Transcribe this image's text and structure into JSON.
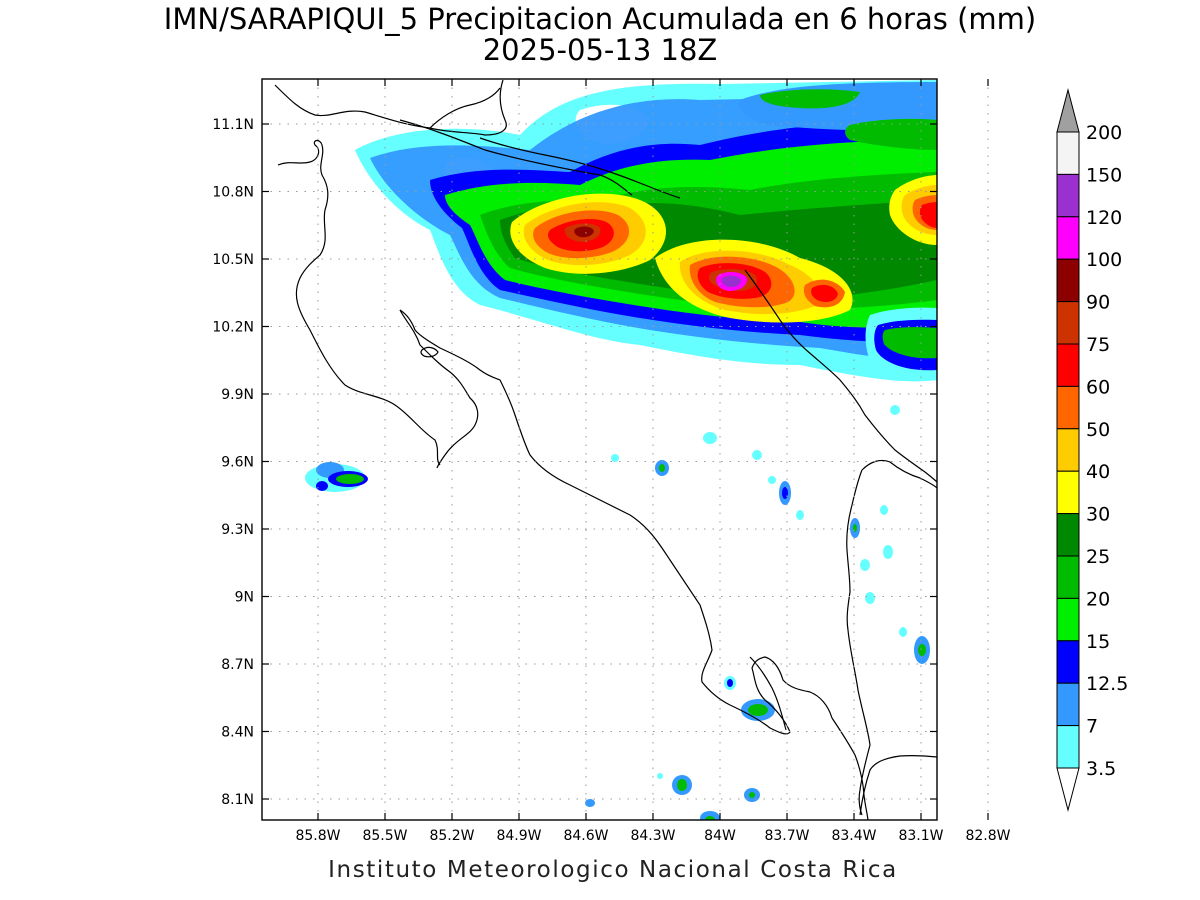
{
  "title": {
    "line1": "IMN/SARAPIQUI_5 Precipitacion Acumulada en 6 horas (mm)",
    "line2": "2025-05-13 18Z"
  },
  "credit": "Instituto Meteorologico Nacional Costa Rica",
  "map": {
    "lon_range": [
      -86.25,
      -82.54
    ],
    "lat_range": [
      8.02,
      11.28
    ],
    "grid": "dotted",
    "x_ticks": [
      "85.8W",
      "85.5W",
      "85.2W",
      "84.9W",
      "84.6W",
      "84.3W",
      "84W",
      "83.7W",
      "83.4W",
      "83.1W",
      "82.8W"
    ],
    "y_ticks": [
      "11.1N",
      "10.8N",
      "10.5N",
      "10.2N",
      "9.9N",
      "9.6N",
      "9.3N",
      "9N",
      "8.7N",
      "8.4N",
      "8.1N"
    ]
  },
  "colorbar": {
    "labels": [
      "200",
      "150",
      "120",
      "100",
      "90",
      "75",
      "60",
      "50",
      "40",
      "30",
      "25",
      "20",
      "15",
      "12.5",
      "7",
      "3.5"
    ],
    "colors": [
      "#a0a0a0",
      "#f4f4f4",
      "#9b30d0",
      "#ff00ff",
      "#8c0000",
      "#cc3300",
      "#ff0000",
      "#ff6600",
      "#ffcc00",
      "#ffff00",
      "#008800",
      "#00bb00",
      "#00ee00",
      "#0000ff",
      "#3399ff",
      "#66ffff"
    ]
  }
}
